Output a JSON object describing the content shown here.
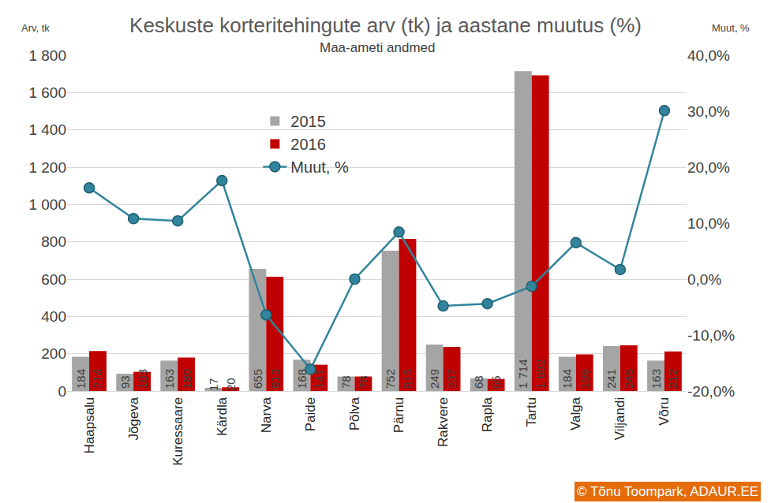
{
  "chart_data": {
    "type": "bar",
    "title": "Keskuste korteritehingute arv (tk) ja aastane muutus (%)",
    "subtitle": "Maa-ameti andmed",
    "ylabel": "Arv, tk",
    "y2label": "Muut, %",
    "credit": "© Tõnu Toompark, ADAUR.EE",
    "categories": [
      "Haapsalu",
      "Jõgeva",
      "Kuressaare",
      "Kärdla",
      "Narva",
      "Paide",
      "Põlva",
      "Pärnu",
      "Rakvere",
      "Rapla",
      "Tartu",
      "Valga",
      "Viljandi",
      "Võru"
    ],
    "series": [
      {
        "name": "2015",
        "type": "bar",
        "color": "#a5a5a5",
        "values": [
          184,
          93,
          163,
          17,
          655,
          168,
          78,
          752,
          249,
          68,
          1714,
          184,
          241,
          163
        ],
        "value_labels": [
          "184",
          "93",
          "163",
          "17",
          "655",
          "168",
          "78",
          "752",
          "249",
          "68",
          "1 714",
          "184",
          "241",
          "163"
        ]
      },
      {
        "name": "2016",
        "type": "bar",
        "color": "#c00000",
        "values": [
          214,
          103,
          180,
          20,
          613,
          141,
          78,
          815,
          237,
          65,
          1692,
          196,
          245,
          212
        ],
        "value_labels": [
          "214",
          "103",
          "180",
          "20",
          "613",
          "141",
          "78",
          "815",
          "237",
          "65",
          "1 692",
          "196",
          "245",
          "212"
        ]
      },
      {
        "name": "Muut, %",
        "type": "line",
        "axis": "y2",
        "color": "#31849b",
        "marker": "circle",
        "values": [
          16.3,
          10.8,
          10.4,
          17.6,
          -6.4,
          -16.1,
          0.0,
          8.4,
          -4.8,
          -4.4,
          -1.3,
          6.5,
          1.7,
          30.1
        ]
      }
    ],
    "ylim": [
      0,
      1800
    ],
    "yticks": [
      0,
      200,
      400,
      600,
      800,
      {
        "value": 1000,
        "label": "1 000"
      },
      {
        "value": 1200,
        "label": "1 200"
      },
      {
        "value": 1400,
        "label": "1 400"
      },
      {
        "value": 1600,
        "label": "1 600"
      },
      {
        "value": 1800,
        "label": "1 800"
      }
    ],
    "y2lim": [
      -20,
      40
    ],
    "y2ticks": [
      {
        "value": -20,
        "label": "-20,0%"
      },
      {
        "value": -10,
        "label": "-10,0%"
      },
      {
        "value": 0,
        "label": "0,0%"
      },
      {
        "value": 10,
        "label": "10,0%"
      },
      {
        "value": 20,
        "label": "20,0%"
      },
      {
        "value": 30,
        "label": "30,0%"
      },
      {
        "value": 40,
        "label": "40,0%"
      }
    ],
    "grid": true,
    "legend": "top-left",
    "data_labels": true
  }
}
